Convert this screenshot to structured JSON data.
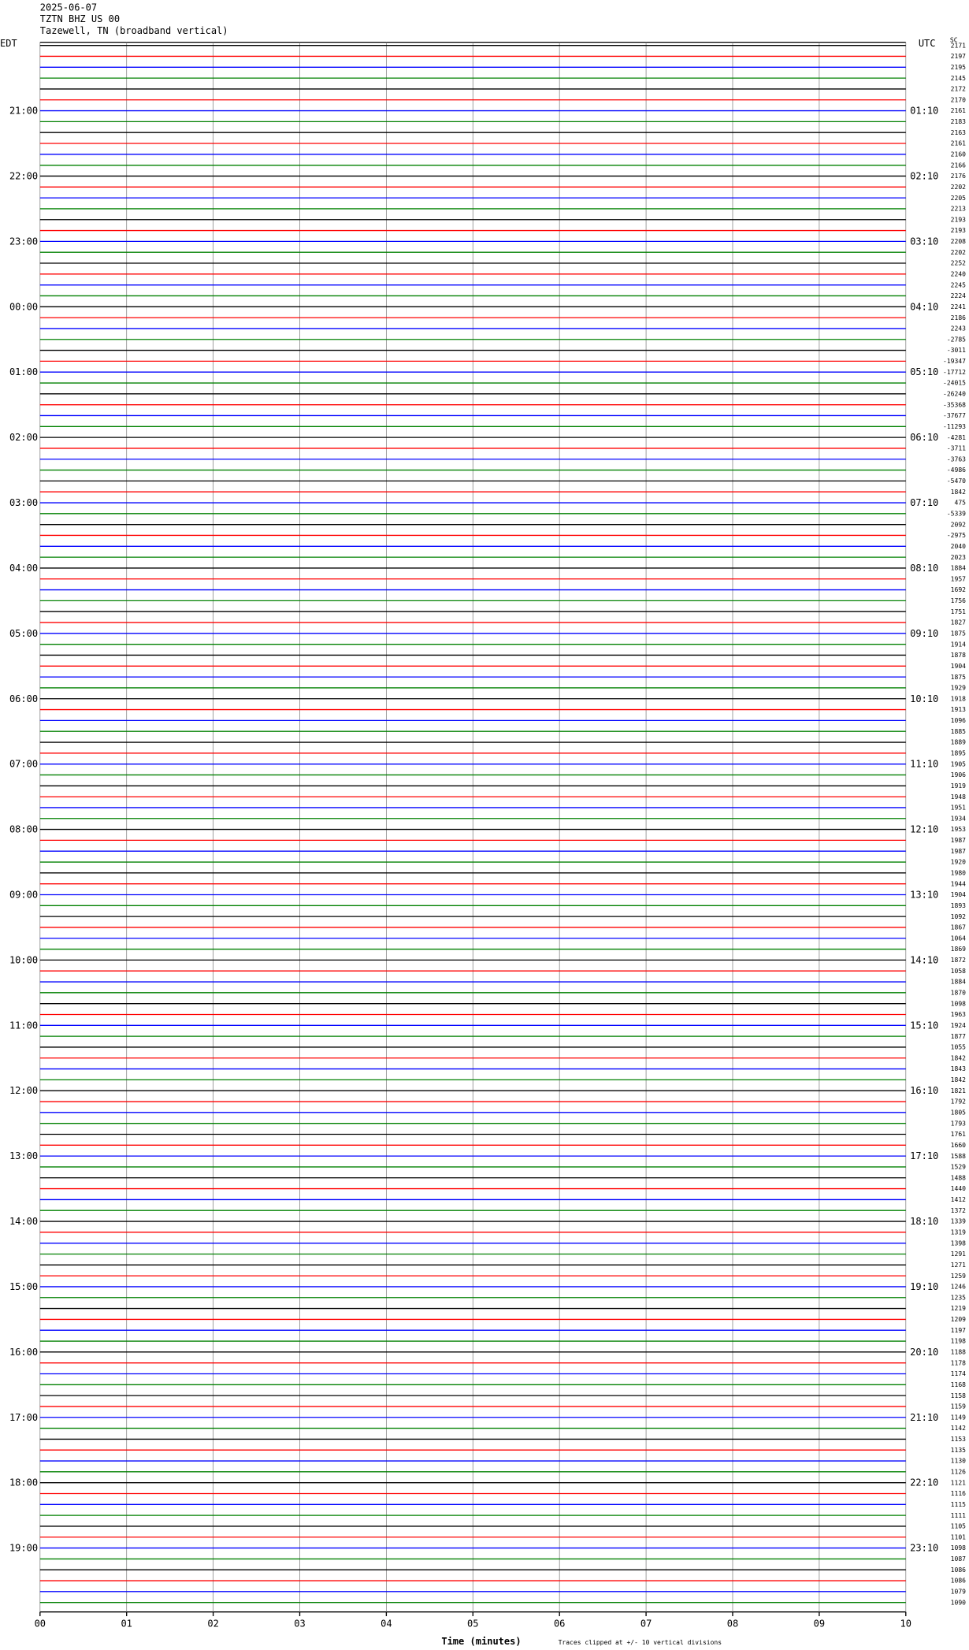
{
  "chart_data": {
    "type": "helicorder",
    "header": [
      "2025-06-07",
      "TZTN BHZ US 00",
      "Tazewell, TN (broadband vertical)"
    ],
    "left_axis_title": "EDT",
    "right_axis_title": "UTC",
    "corner_label": "SC",
    "hour_labels": [
      null,
      "21:00",
      "22:00",
      "23:00",
      "00:00",
      "01:00",
      "02:00",
      "03:00",
      "04:00",
      "05:00",
      "06:00",
      "07:00",
      "08:00",
      "09:00",
      "10:00",
      "11:00",
      "12:00",
      "13:00",
      "14:00",
      "15:00",
      "16:00",
      "17:00",
      "18:00",
      "19:00"
    ],
    "utc_labels": [
      null,
      "01:10",
      "02:10",
      "03:10",
      "04:10",
      "05:10",
      "06:10",
      "07:10",
      "08:10",
      "09:10",
      "10:10",
      "11:10",
      "12:10",
      "13:10",
      "14:10",
      "15:10",
      "16:10",
      "17:10",
      "18:10",
      "19:10",
      "20:10",
      "21:10",
      "22:10",
      "23:10"
    ],
    "values": [
      2171,
      2197,
      2195,
      2145,
      2172,
      2170,
      2161,
      2183,
      2163,
      2161,
      2160,
      2166,
      2176,
      2202,
      2205,
      2213,
      2193,
      2193,
      2208,
      2202,
      2252,
      2240,
      2245,
      2224,
      2241,
      2186,
      2243,
      -2785,
      -3011,
      -19347,
      -17712,
      -24015,
      -26240,
      -35368,
      -37677,
      -11293,
      -4281,
      -3711,
      -3763,
      -4986,
      -5470,
      1842,
      475,
      -5339,
      2092,
      -2975,
      2040,
      2023,
      1884,
      1957,
      1692,
      1756,
      1751,
      1827,
      1875,
      1914,
      1878,
      1904,
      1875,
      1929,
      1918,
      1913,
      1096,
      1885,
      1889,
      1895,
      1905,
      1906,
      1919,
      1948,
      1951,
      1934,
      1953,
      1987,
      1987,
      1920,
      1980,
      1944,
      1904,
      1893,
      1092,
      1867,
      1064,
      1869,
      1872,
      1058,
      1884,
      1870,
      1098,
      1963,
      1924,
      1877,
      1055,
      1842,
      1843,
      1842,
      1821,
      1792,
      1805,
      1793,
      1761,
      1660,
      1588,
      1529,
      1488,
      1440,
      1412,
      1372,
      1339,
      1319,
      1398,
      1291,
      1271,
      1259,
      1246,
      1235,
      1219,
      1209,
      1197,
      1198,
      1188,
      1178,
      1174,
      1168,
      1158,
      1159,
      1149,
      1142,
      1153,
      1135,
      1130,
      1126,
      1121,
      1116,
      1115,
      1111,
      1105,
      1101,
      1098,
      1087,
      1086,
      1086,
      1079,
      1090
    ],
    "colors": [
      "#000000",
      "#ff0000",
      "#0000ff",
      "#008000"
    ],
    "xlim": [
      0,
      10
    ],
    "xticks": [
      {
        "value": 0,
        "label": "00"
      },
      {
        "value": 1,
        "label": "01"
      },
      {
        "value": 2,
        "label": "02"
      },
      {
        "value": 3,
        "label": "03"
      },
      {
        "value": 4,
        "label": "04"
      },
      {
        "value": 5,
        "label": "05"
      },
      {
        "value": 6,
        "label": "06"
      },
      {
        "value": 7,
        "label": "07"
      },
      {
        "value": 8,
        "label": "08"
      },
      {
        "value": 9,
        "label": "09"
      },
      10
    ],
    "xlabel": "Time (minutes)",
    "note": "Traces clipped at +/- 10 vertical divisions",
    "grid": true
  }
}
